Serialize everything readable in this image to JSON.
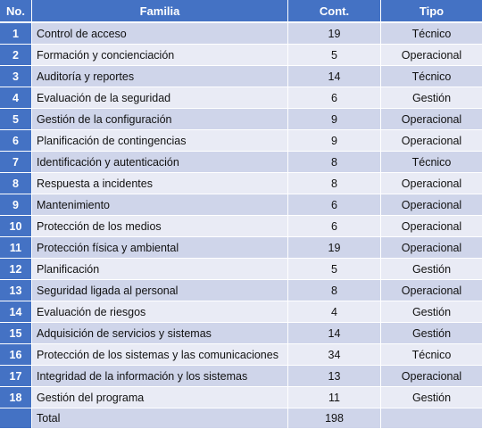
{
  "table": {
    "headers": {
      "no": "No.",
      "familia": "Familia",
      "cont": "Cont.",
      "tipo": "Tipo"
    },
    "rows": [
      {
        "no": "1",
        "familia": "Control de acceso",
        "cont": "19",
        "tipo": "Técnico"
      },
      {
        "no": "2",
        "familia": "Formación y concienciación",
        "cont": "5",
        "tipo": "Operacional"
      },
      {
        "no": "3",
        "familia": "Auditoría y reportes",
        "cont": "14",
        "tipo": "Técnico"
      },
      {
        "no": "4",
        "familia": "Evaluación de la seguridad",
        "cont": "6",
        "tipo": "Gestión"
      },
      {
        "no": "5",
        "familia": "Gestión de la configuración",
        "cont": "9",
        "tipo": "Operacional"
      },
      {
        "no": "6",
        "familia": "Planificación de contingencias",
        "cont": "9",
        "tipo": "Operacional"
      },
      {
        "no": "7",
        "familia": "Identificación y autenticación",
        "cont": "8",
        "tipo": "Técnico"
      },
      {
        "no": "8",
        "familia": "Respuesta a incidentes",
        "cont": "8",
        "tipo": "Operacional"
      },
      {
        "no": "9",
        "familia": "Mantenimiento",
        "cont": "6",
        "tipo": "Operacional"
      },
      {
        "no": "10",
        "familia": "Protección de los medios",
        "cont": "6",
        "tipo": "Operacional"
      },
      {
        "no": "11",
        "familia": "Protección física y ambiental",
        "cont": "19",
        "tipo": "Operacional"
      },
      {
        "no": "12",
        "familia": "Planificación",
        "cont": "5",
        "tipo": "Gestión"
      },
      {
        "no": "13",
        "familia": "Seguridad ligada al personal",
        "cont": "8",
        "tipo": "Operacional"
      },
      {
        "no": "14",
        "familia": "Evaluación de riesgos",
        "cont": "4",
        "tipo": "Gestión"
      },
      {
        "no": "15",
        "familia": "Adquisición de servicios y sistemas",
        "cont": "14",
        "tipo": "Gestión"
      },
      {
        "no": "16",
        "familia": "Protección de los sistemas y las comunicaciones",
        "cont": "34",
        "tipo": "Técnico"
      },
      {
        "no": "17",
        "familia": "Integridad de la información y los sistemas",
        "cont": "13",
        "tipo": "Operacional"
      },
      {
        "no": "18",
        "familia": "Gestión del programa",
        "cont": "11",
        "tipo": "Gestión"
      }
    ],
    "total": {
      "label": "Total",
      "cont": "198"
    }
  }
}
